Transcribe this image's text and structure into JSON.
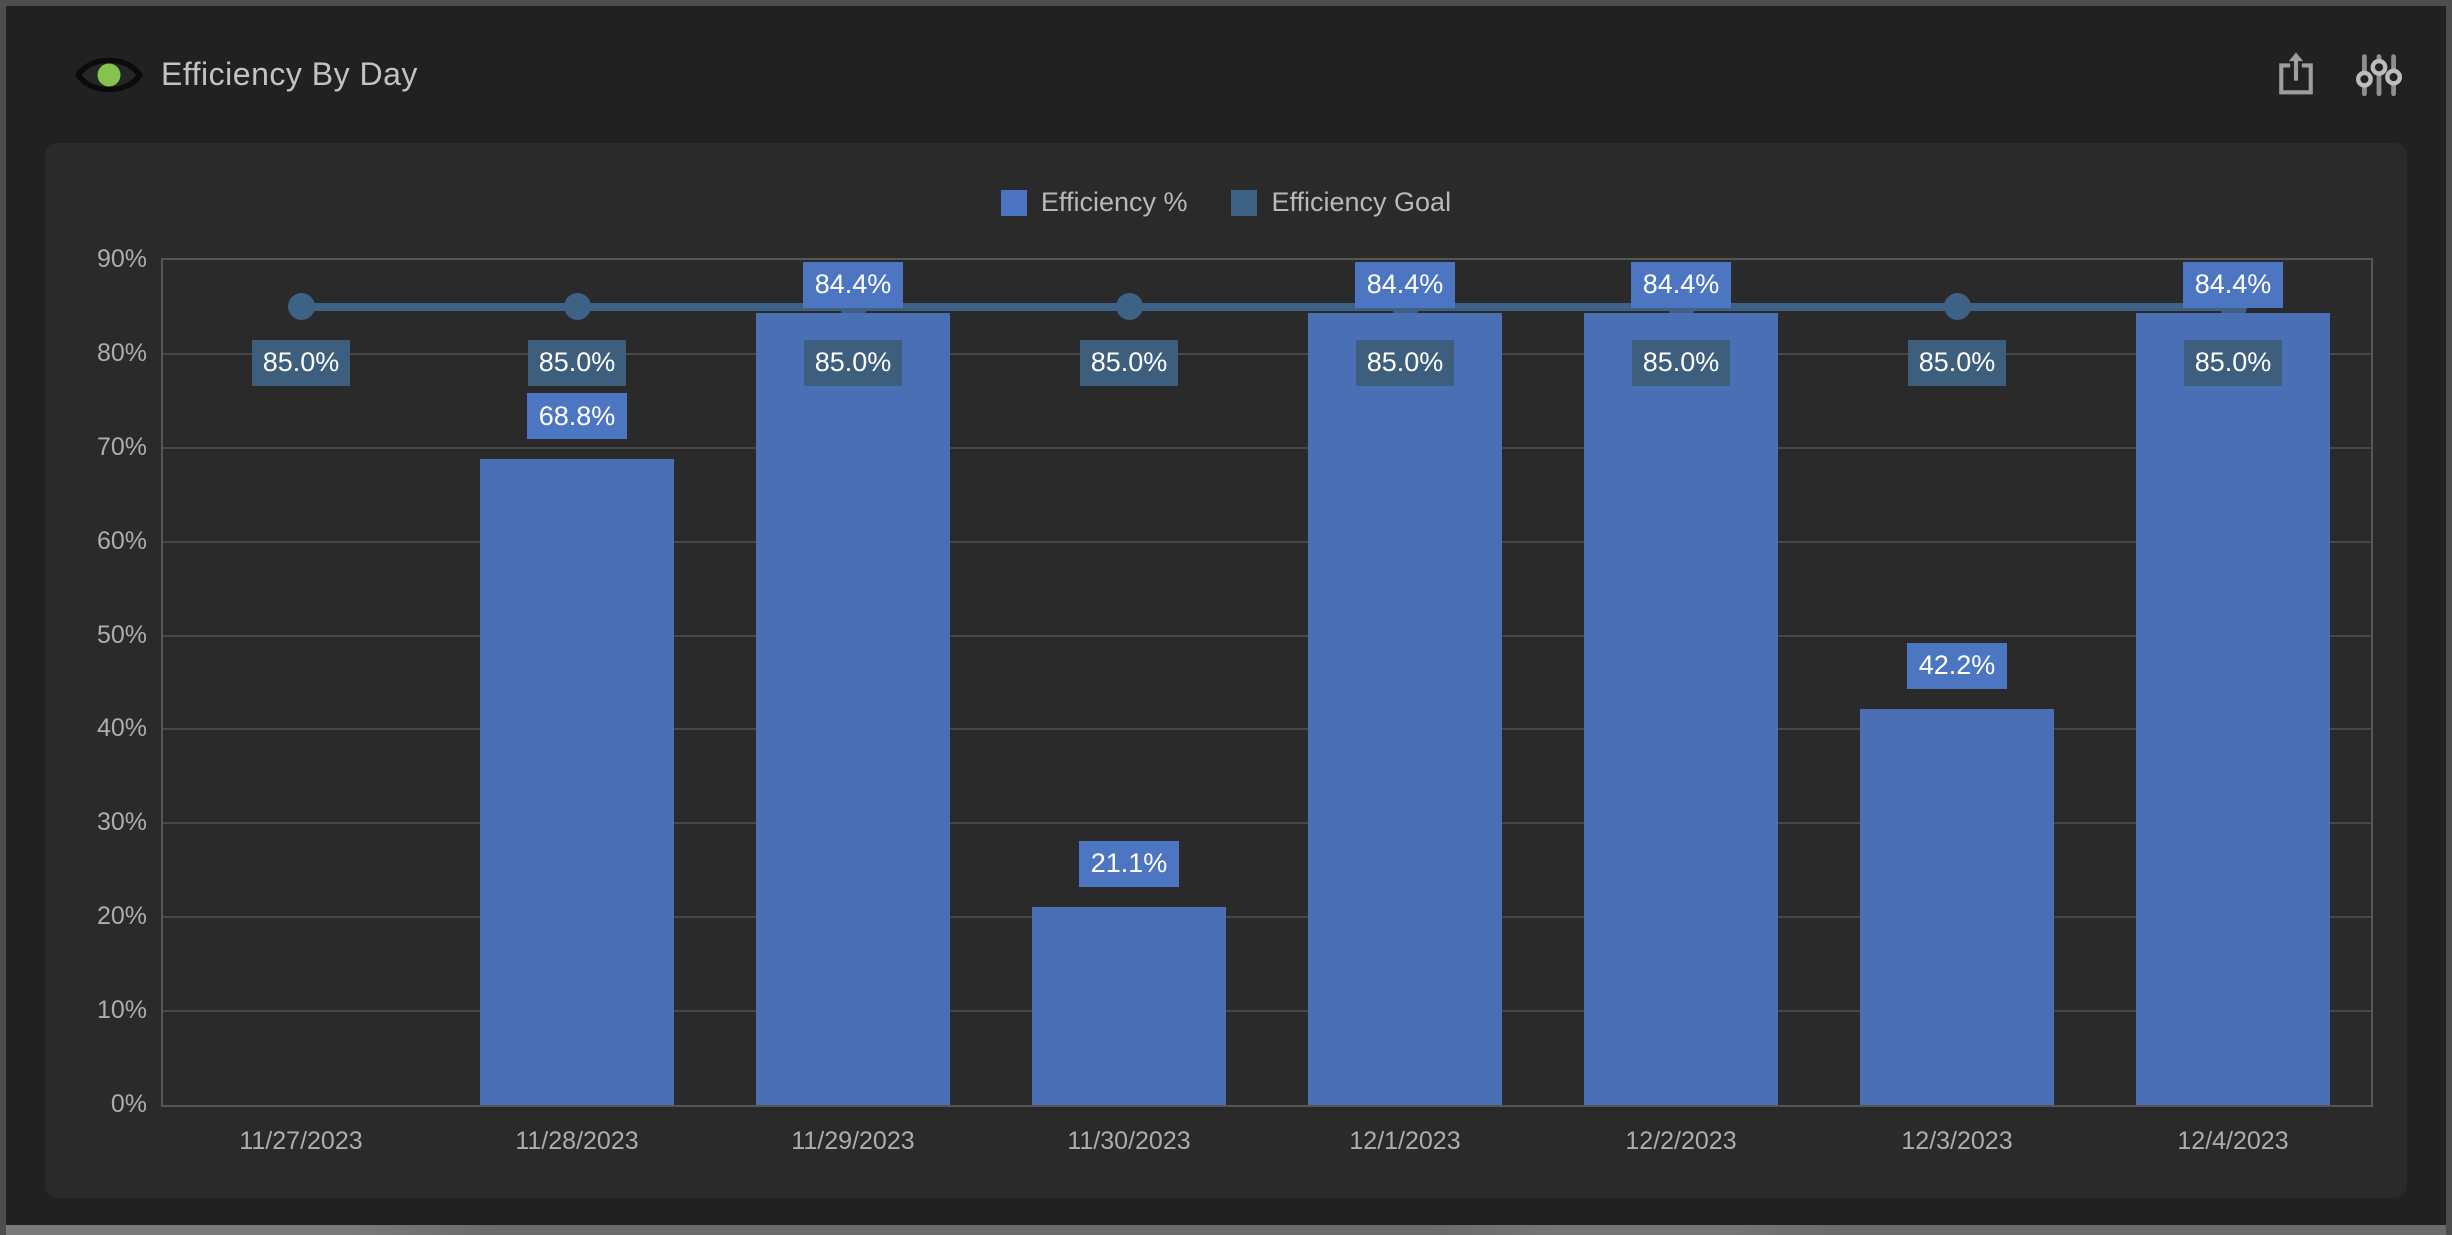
{
  "header": {
    "title": "Efficiency By Day",
    "logo_icon": "eye-logo-icon"
  },
  "toolbar": {
    "export_icon": "share-export-icon",
    "settings_icon": "sliders-icon"
  },
  "legend": [
    {
      "label": "Efficiency %",
      "color": "#4c74c1"
    },
    {
      "label": "Efficiency Goal",
      "color": "#3d6183"
    }
  ],
  "colors": {
    "bar": "#4a6fb4",
    "bar_label_bg": "#4c75c2",
    "goal_line": "#3d6285",
    "goal_label_bg": "#3d5e7c",
    "panel_bg": "#2a2a2b",
    "card_bg": "#212122",
    "grid": "#474747",
    "axis_text": "#adadad",
    "logo_green": "#84c44c"
  },
  "chart_data": {
    "type": "bar",
    "title": "Efficiency By Day",
    "categories": [
      "11/27/2023",
      "11/28/2023",
      "11/29/2023",
      "11/30/2023",
      "12/1/2023",
      "12/2/2023",
      "12/3/2023",
      "12/4/2023"
    ],
    "series": [
      {
        "name": "Efficiency %",
        "type": "bar",
        "color": "#4a6fb4",
        "values": [
          null,
          68.8,
          84.4,
          21.1,
          84.4,
          84.4,
          42.2,
          84.4
        ],
        "labels": [
          null,
          "68.8%",
          "84.4%",
          "21.1%",
          "84.4%",
          "84.4%",
          "42.2%",
          "84.4%"
        ]
      },
      {
        "name": "Efficiency Goal",
        "type": "line",
        "color": "#3d6285",
        "values": [
          85.0,
          85.0,
          85.0,
          85.0,
          85.0,
          85.0,
          85.0,
          85.0
        ],
        "labels": [
          "85.0%",
          "85.0%",
          "85.0%",
          "85.0%",
          "85.0%",
          "85.0%",
          "85.0%",
          "85.0%"
        ]
      }
    ],
    "ylabel": "",
    "xlabel": "",
    "ylim": [
      0,
      90
    ],
    "ytick_step": 10,
    "ytick_labels": [
      "0%",
      "10%",
      "20%",
      "30%",
      "40%",
      "50%",
      "60%",
      "70%",
      "80%",
      "90%"
    ],
    "grid": "horizontal",
    "legend_position": "top"
  }
}
